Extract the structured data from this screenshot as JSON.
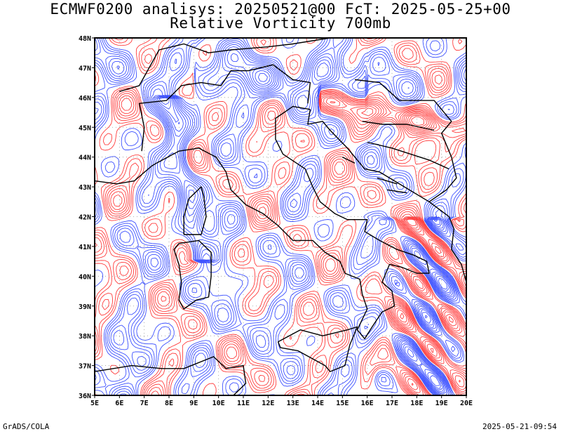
{
  "title": {
    "line1": "ECMWF0200 analisys: 20250521@00 FcT: 2025-05-25+00",
    "line2": "Relative Vorticity 700mb"
  },
  "axes": {
    "x_ticks": [
      "5E",
      "6E",
      "7E",
      "8E",
      "9E",
      "10E",
      "11E",
      "12E",
      "13E",
      "14E",
      "15E",
      "16E",
      "17E",
      "18E",
      "19E",
      "20E"
    ],
    "x_values": [
      5,
      6,
      7,
      8,
      9,
      10,
      11,
      12,
      13,
      14,
      15,
      16,
      17,
      18,
      19,
      20
    ],
    "y_ticks": [
      "36N",
      "37N",
      "38N",
      "39N",
      "40N",
      "41N",
      "42N",
      "43N",
      "44N",
      "45N",
      "46N",
      "47N",
      "48N"
    ],
    "y_values": [
      36,
      37,
      38,
      39,
      40,
      41,
      42,
      43,
      44,
      45,
      46,
      47,
      48
    ],
    "lon_range": [
      5,
      20
    ],
    "lat_range": [
      36,
      48
    ],
    "grid": true
  },
  "colors": {
    "positive": "#ff3c3c",
    "negative": "#3c50ff",
    "coast": "#000000",
    "grid": "#999999"
  },
  "footer": {
    "left": "GrADS/COLA",
    "right": "2025-05-21-09:54"
  }
}
